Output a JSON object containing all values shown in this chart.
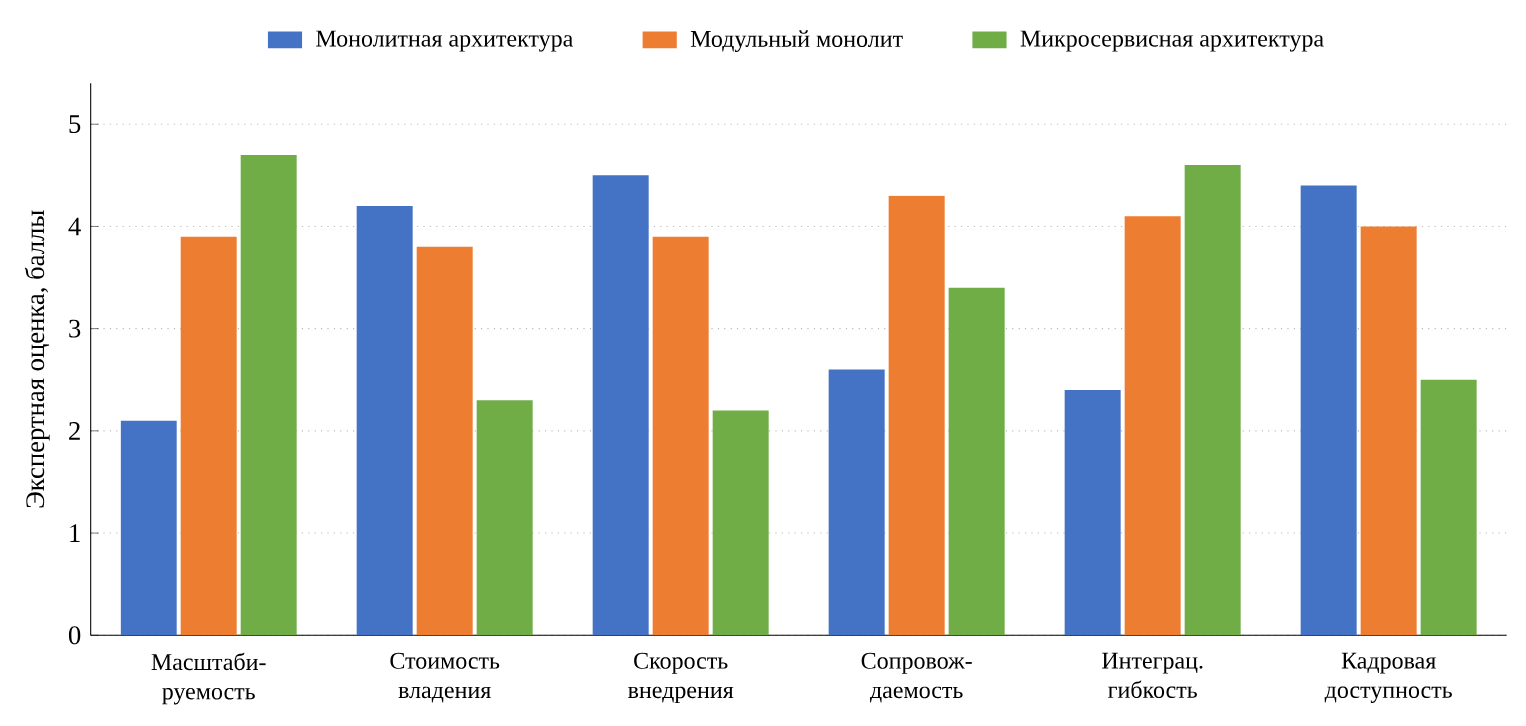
{
  "chart_data": {
    "type": "bar",
    "ylabel": "Экспертная оценка, баллы",
    "categories": [
      "Масштаби-руемость",
      "Стоимость владения",
      "Скорость внедрения",
      "Сопровож-даемость",
      "Интеграц. гибкость",
      "Кадровая доступность"
    ],
    "series": [
      {
        "name": "Монолитная архитектура",
        "color": "#4472c4",
        "values": [
          2.1,
          4.2,
          4.5,
          2.6,
          2.4,
          4.4
        ]
      },
      {
        "name": "Модульный монолит",
        "color": "#ed7d31",
        "values": [
          3.9,
          3.8,
          3.9,
          4.3,
          4.1,
          4.0
        ]
      },
      {
        "name": "Микросервисная архитектура",
        "color": "#70ad47",
        "values": [
          4.7,
          2.3,
          2.2,
          3.4,
          4.6,
          2.5
        ]
      }
    ],
    "ylim": [
      0,
      5.4
    ],
    "yticks": [
      0,
      1,
      2,
      3,
      4,
      5
    ],
    "grid": "y",
    "legend": "top"
  }
}
